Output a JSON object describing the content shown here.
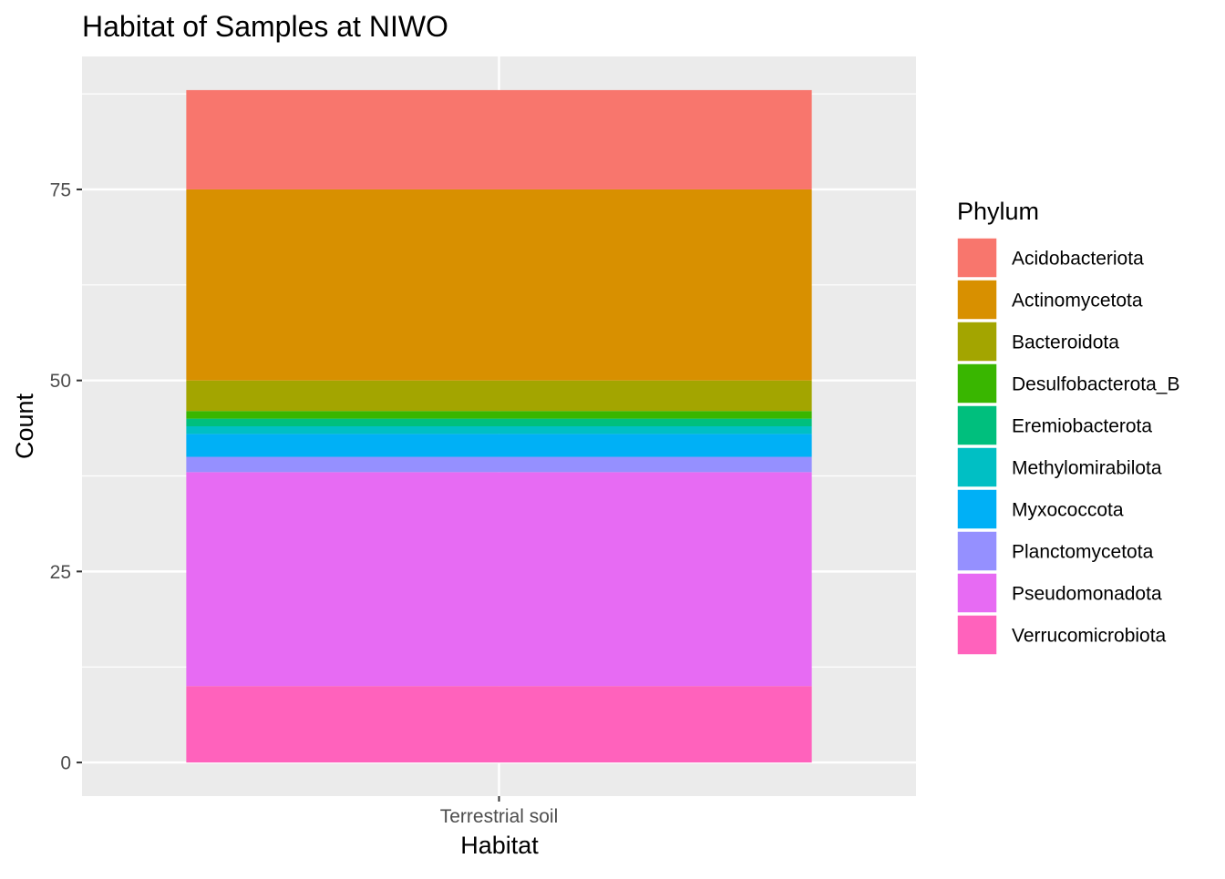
{
  "chart_data": {
    "type": "bar",
    "stacked": true,
    "title": "Habitat of Samples at NIWO",
    "xlabel": "Habitat",
    "ylabel": "Count",
    "categories": [
      "Terrestrial soil"
    ],
    "ylim": [
      -4.4,
      92.4
    ],
    "yticks": [
      0,
      25,
      50,
      75
    ],
    "grid": true,
    "legend": {
      "title": "Phylum",
      "position": "right"
    },
    "series": [
      {
        "name": "Acidobacteriota",
        "color": "#F8766D",
        "values": [
          13
        ]
      },
      {
        "name": "Actinomycetota",
        "color": "#D89000",
        "values": [
          25
        ]
      },
      {
        "name": "Bacteroidota",
        "color": "#A3A500",
        "values": [
          4
        ]
      },
      {
        "name": "Desulfobacterota_B",
        "color": "#39B600",
        "values": [
          1
        ]
      },
      {
        "name": "Eremiobacterota",
        "color": "#00BF7D",
        "values": [
          1
        ]
      },
      {
        "name": "Methylomirabilota",
        "color": "#00BFC4",
        "values": [
          1
        ]
      },
      {
        "name": "Myxococcota",
        "color": "#00B0F6",
        "values": [
          3
        ]
      },
      {
        "name": "Planctomycetota",
        "color": "#9590FF",
        "values": [
          2
        ]
      },
      {
        "name": "Pseudomonadota",
        "color": "#E76BF3",
        "values": [
          28
        ]
      },
      {
        "name": "Verrucomicrobiota",
        "color": "#FF62BC",
        "values": [
          10
        ]
      }
    ]
  },
  "colors": {
    "panel_background": "#EBEBEB",
    "grid_major": "#FFFFFF",
    "tick_text": "#4D4D4D",
    "axis_tick": "#333333"
  }
}
